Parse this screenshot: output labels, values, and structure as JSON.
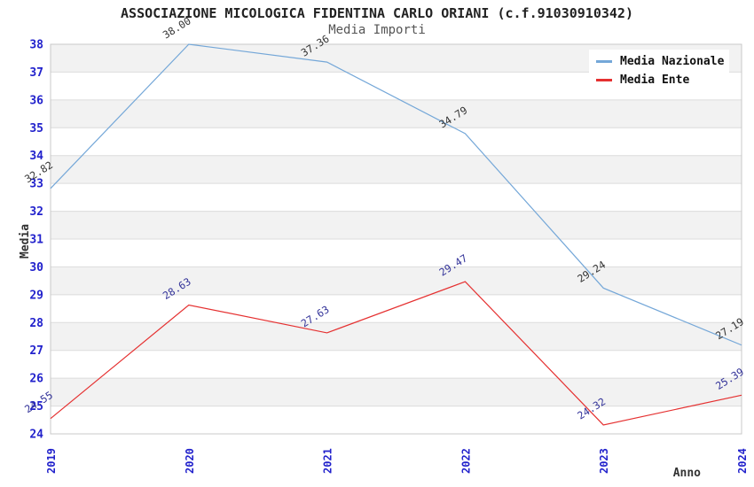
{
  "header": {
    "title": "ASSOCIAZIONE MICOLOGICA FIDENTINA CARLO ORIANI (c.f.91030910342)",
    "subtitle": "Media Importi"
  },
  "chart_data": {
    "type": "line",
    "x": [
      "2019",
      "2020",
      "2021",
      "2022",
      "2023",
      "2024"
    ],
    "series": [
      {
        "name": "Media Nazionale",
        "color": "#74a7d8",
        "label_color": "#333333",
        "values": [
          32.82,
          38.0,
          37.36,
          34.79,
          29.24,
          27.19
        ]
      },
      {
        "name": "Media Ente",
        "color": "#e53030",
        "label_color": "#333399",
        "values": [
          24.55,
          28.63,
          27.63,
          29.47,
          24.32,
          25.39
        ]
      }
    ],
    "xlabel": "Anno",
    "ylabel": "Media",
    "ylim": [
      24,
      38
    ],
    "y_ticks": [
      24,
      25,
      26,
      27,
      28,
      29,
      30,
      31,
      32,
      33,
      34,
      35,
      36,
      37,
      38
    ],
    "grid": true,
    "grid_color": "#dcdcdc",
    "plot_border_color": "#c8c8c8",
    "band_colors": [
      "#f2f2f2",
      "#ffffff"
    ],
    "axis_tick_color": "#2222cc",
    "legend_position": "top-right",
    "value_label_decimals": 2
  }
}
